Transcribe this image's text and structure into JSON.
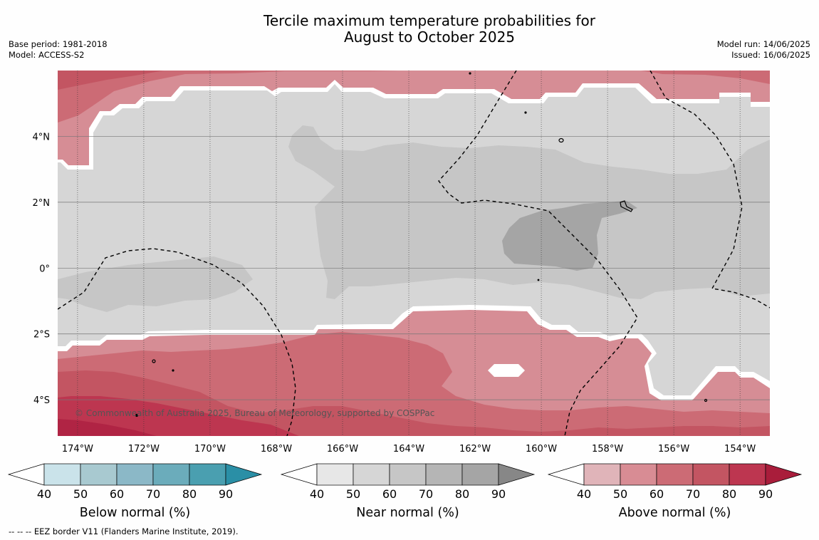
{
  "title_line1": "Tercile maximum temperature probabilities for",
  "title_line2": "August to October 2025",
  "meta_left": [
    "Base period: 1981-2018",
    "Model: ACCESS-S2"
  ],
  "meta_right": [
    "Model run: 14/06/2025",
    "Issued: 16/06/2025"
  ],
  "copyright": "© Commonwealth of Australia 2025, Bureau of Meteorology, supported by COSPPac",
  "footer": "-- -- -- EEZ border V11 (Flanders Marine Institute, 2019).",
  "chart_data": {
    "type": "heatmap",
    "title": "Tercile maximum temperature probabilities for August to October 2025",
    "x_axis": {
      "ticks": [
        "174°W",
        "172°W",
        "170°W",
        "168°W",
        "166°W",
        "164°W",
        "162°W",
        "160°W",
        "158°W",
        "156°W",
        "154°W"
      ],
      "tick_values": [
        -174,
        -172,
        -170,
        -168,
        -166,
        -164,
        -162,
        -160,
        -158,
        -156,
        -154
      ],
      "range": [
        -174.6,
        -153.1
      ]
    },
    "y_axis": {
      "ticks": [
        "4°N",
        "2°N",
        "0°",
        "2°S",
        "4°S"
      ],
      "tick_values": [
        4,
        2,
        0,
        -2,
        -4
      ],
      "range": [
        -5.1,
        6.0
      ]
    },
    "grid": true,
    "categories": [
      {
        "name": "Below normal (%)",
        "levels": [
          40,
          50,
          60,
          70,
          80,
          90
        ],
        "colors": [
          "#ffffff",
          "#cae3ea",
          "#a8c9d0",
          "#8bb8c7",
          "#6bacbb",
          "#4a9fb0",
          "#2a8fa6"
        ]
      },
      {
        "name": "Near normal (%)",
        "levels": [
          40,
          50,
          60,
          70,
          80,
          90
        ],
        "colors": [
          "#ffffff",
          "#e7e7e7",
          "#d6d6d6",
          "#c6c6c6",
          "#b5b5b5",
          "#a5a5a5",
          "#878787"
        ]
      },
      {
        "name": "Above normal (%)",
        "levels": [
          40,
          50,
          60,
          70,
          80,
          90
        ],
        "colors": [
          "#ffffff",
          "#e0b4b9",
          "#d88c94",
          "#cc6b75",
          "#c35562",
          "#bd3650",
          "#a91d3b"
        ]
      }
    ]
  }
}
